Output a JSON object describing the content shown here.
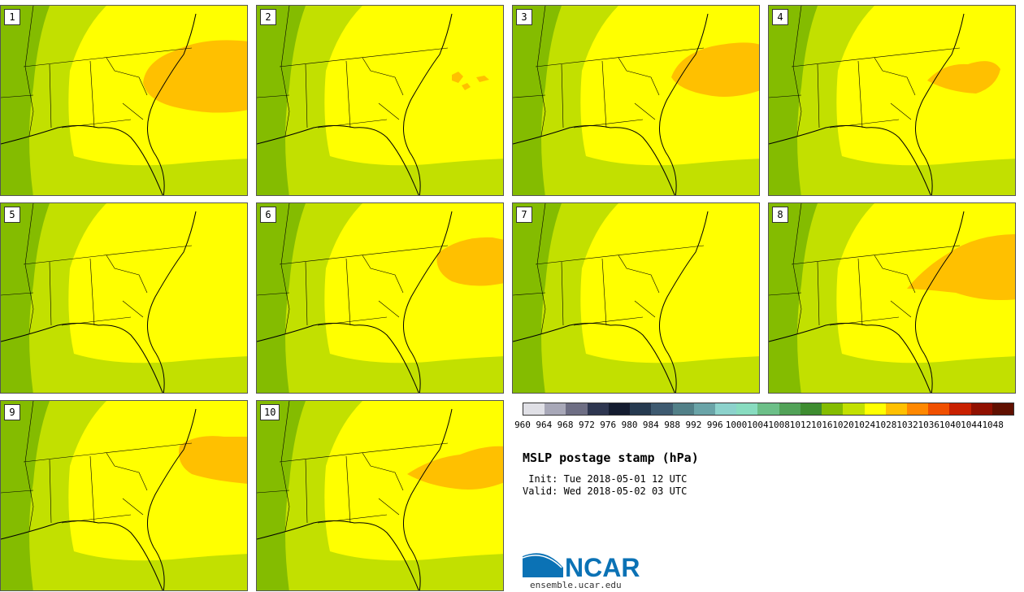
{
  "panels": [
    {
      "member": "1",
      "high_blob": true,
      "blob_variant": "large"
    },
    {
      "member": "2",
      "high_blob": true,
      "blob_variant": "specks"
    },
    {
      "member": "3",
      "high_blob": true,
      "blob_variant": "medium"
    },
    {
      "member": "4",
      "high_blob": true,
      "blob_variant": "small"
    },
    {
      "member": "5",
      "high_blob": false,
      "blob_variant": "none"
    },
    {
      "member": "6",
      "high_blob": true,
      "blob_variant": "medium-right"
    },
    {
      "member": "7",
      "high_blob": false,
      "blob_variant": "none"
    },
    {
      "member": "8",
      "high_blob": true,
      "blob_variant": "large-coast"
    },
    {
      "member": "9",
      "high_blob": true,
      "blob_variant": "edge"
    },
    {
      "member": "10",
      "high_blob": true,
      "blob_variant": "streak"
    }
  ],
  "colorbar": {
    "colors": [
      "#e0e0e6",
      "#a8a8b8",
      "#6e6e84",
      "#2e3650",
      "#141c30",
      "#263a50",
      "#3e5a70",
      "#528088",
      "#6aa4a8",
      "#8cd2cc",
      "#88dcc0",
      "#6cbf88",
      "#52a258",
      "#3e8c30",
      "#84bc00",
      "#c2e000",
      "#ffff00",
      "#ffc000",
      "#ff8800",
      "#f05000",
      "#c82000",
      "#901000",
      "#601000"
    ],
    "labels": [
      "960",
      "964",
      "968",
      "972",
      "976",
      "980",
      "984",
      "988",
      "992",
      "996",
      "1000",
      "1004",
      "1008",
      "1012",
      "1016",
      "1020",
      "1024",
      "1028",
      "1032",
      "1036",
      "1040",
      "1044",
      "1048"
    ]
  },
  "title": "MSLP postage stamp (hPa)",
  "init": " Init: Tue 2018-05-01 12 UTC",
  "valid": "Valid: Wed 2018-05-02 03 UTC",
  "logo": {
    "text": "NCAR",
    "url": "ensemble.ucar.edu",
    "brand_color": "#0b72b5"
  },
  "map_colors": {
    "high_1024": "#ffff00",
    "mid_1020": "#c2e000",
    "low_1016": "#84bc00",
    "high_1028": "#ffc000"
  }
}
